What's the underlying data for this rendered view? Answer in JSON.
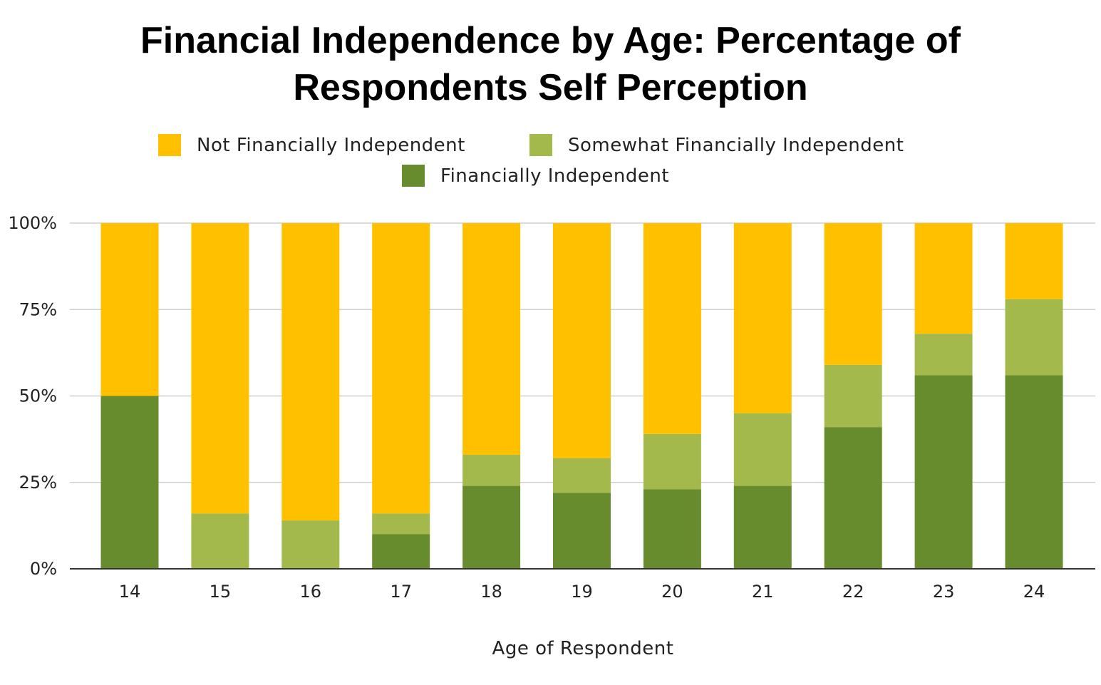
{
  "chart_data": {
    "type": "bar",
    "stacked": true,
    "title": "Financial Independence by Age: Percentage of\nRespondents Self Perception",
    "xlabel": "Age of Respondent",
    "ylabel": "",
    "ylim": [
      0,
      100
    ],
    "yticks": [
      "0%",
      "25%",
      "50%",
      "75%",
      "100%"
    ],
    "grid": true,
    "legend_position": "top",
    "categories": [
      "14",
      "15",
      "16",
      "17",
      "18",
      "19",
      "20",
      "21",
      "22",
      "23",
      "24"
    ],
    "series": [
      {
        "name": "Financially Independent",
        "color": "#668c2e",
        "values": [
          50,
          0,
          0,
          10,
          24,
          22,
          23,
          24,
          41,
          56,
          56
        ]
      },
      {
        "name": "Somewhat Financially Independent",
        "color": "#a3b94c",
        "values": [
          0,
          16,
          14,
          6,
          9,
          10,
          16,
          21,
          18,
          12,
          22
        ]
      },
      {
        "name": "Not Financially Independent",
        "color": "#ffc000",
        "values": [
          50,
          84,
          86,
          84,
          67,
          68,
          61,
          55,
          41,
          32,
          22
        ]
      }
    ],
    "legend_order": [
      "Not Financially Independent",
      "Somewhat Financially Independent",
      "Financially Independent"
    ]
  }
}
